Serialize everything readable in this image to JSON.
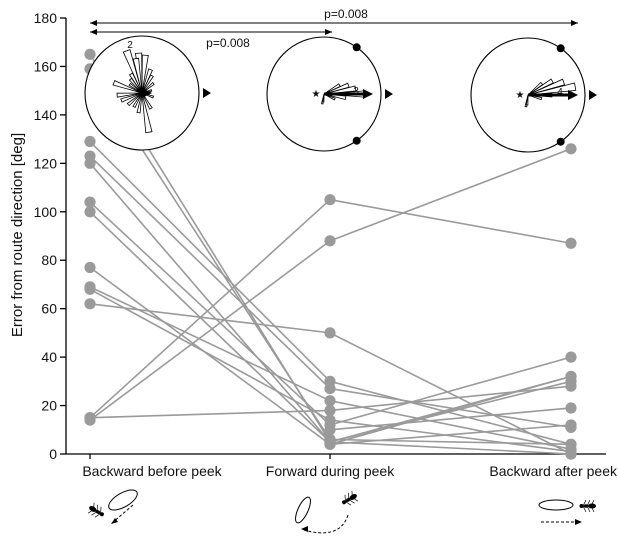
{
  "chart_data": {
    "type": "line",
    "ylabel": "Error from route direction [deg]",
    "xlabel": "",
    "categories": [
      "Backward before peek",
      "Forward during peek",
      "Backward after peek"
    ],
    "ylim": [
      0,
      180
    ],
    "yticks": [
      0,
      20,
      40,
      60,
      80,
      100,
      120,
      140,
      160,
      180
    ],
    "grid": false,
    "series": [
      {
        "values": [
          165,
          5,
          0
        ]
      },
      {
        "values": [
          159,
          6,
          4
        ]
      },
      {
        "values": [
          129,
          30,
          4
        ]
      },
      {
        "values": [
          123,
          27,
          11
        ]
      },
      {
        "values": [
          120,
          5,
          32
        ]
      },
      {
        "values": [
          104,
          12,
          40
        ]
      },
      {
        "values": [
          100,
          5,
          30
        ]
      },
      {
        "values": [
          77,
          4,
          12
        ]
      },
      {
        "values": [
          69,
          22,
          2
        ]
      },
      {
        "values": [
          68,
          14,
          1
        ]
      },
      {
        "values": [
          62,
          50,
          0
        ]
      },
      {
        "values": [
          15,
          105,
          87
        ]
      },
      {
        "values": [
          14,
          88,
          126
        ]
      },
      {
        "values": [
          15,
          18,
          28
        ]
      },
      {
        "values": [
          null,
          10,
          19
        ]
      },
      {
        "values": [
          null,
          4,
          32
        ]
      }
    ],
    "annotations": [
      {
        "text": "p=0.008",
        "from": "Backward before peek",
        "to": "Backward after peek"
      },
      {
        "text": "p=0.008",
        "from": "Backward before peek",
        "to": "Forward during peek"
      }
    ],
    "insets": [
      {
        "category": "Backward before peek",
        "label": "2"
      },
      {
        "category": "Forward during peek",
        "label": "3"
      },
      {
        "category": "Backward after peek",
        "label": "4"
      }
    ]
  }
}
